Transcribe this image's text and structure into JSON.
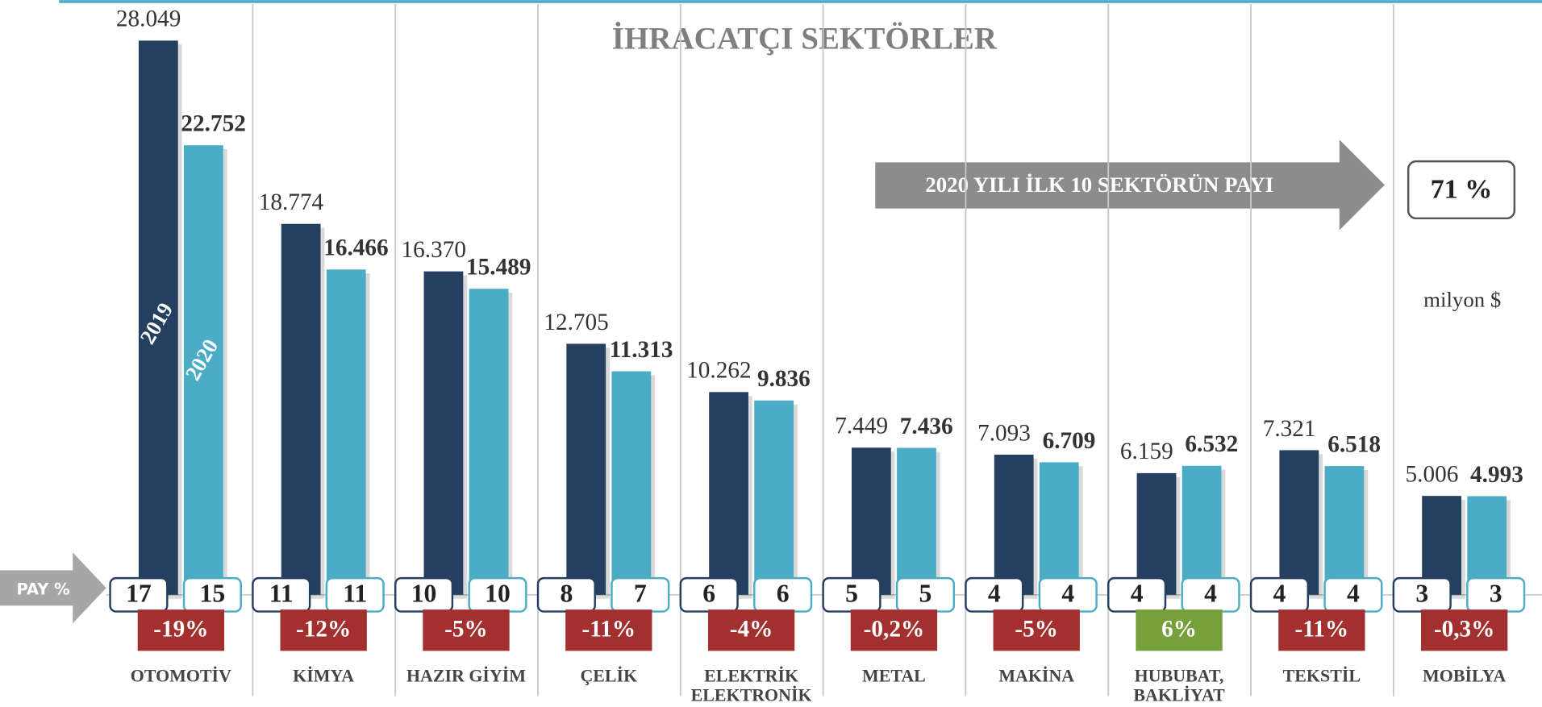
{
  "chart_data": {
    "type": "bar",
    "title": "İHRACATÇI SEKTÖRLER",
    "unit_label": "milyon $",
    "banner": {
      "text": "2020 YILI İLK 10 SEKTÖRÜN PAYI",
      "value": "71 %"
    },
    "share_label": "PAY %",
    "categories": [
      "OTOMOTİV",
      "KİMYA",
      "HAZIR GİYİM",
      "ÇELİK",
      "ELEKTRİK\nELEKTRONİK",
      "METAL",
      "MAKİNA",
      "HUBUBAT,\nBAKLİYAT",
      "TEKSTİL",
      "MOBİLYA"
    ],
    "series": [
      {
        "name": "2019",
        "color": "#243f60",
        "values": [
          28049,
          18774,
          16370,
          12705,
          10262,
          7449,
          7093,
          6159,
          7321,
          5006
        ],
        "value_labels": [
          "28.049",
          "18.774",
          "16.370",
          "12.705",
          "10.262",
          "7.449",
          "7.093",
          "6.159",
          "7.321",
          "5.006"
        ],
        "shares": [
          17,
          11,
          10,
          8,
          6,
          5,
          4,
          4,
          4,
          3
        ]
      },
      {
        "name": "2020",
        "color": "#4bacc6",
        "values": [
          22752,
          16466,
          15489,
          11313,
          9836,
          7436,
          6709,
          6532,
          6518,
          4993
        ],
        "value_labels": [
          "22.752",
          "16.466",
          "15.489",
          "11.313",
          "9.836",
          "7.436",
          "6.709",
          "6.532",
          "6.518",
          "4.993"
        ],
        "shares": [
          15,
          11,
          10,
          7,
          6,
          5,
          4,
          4,
          4,
          3
        ]
      }
    ],
    "changes": {
      "values": [
        -19,
        -12,
        -5,
        -11,
        -4,
        -0.2,
        -5,
        6,
        -11,
        -0.3
      ],
      "value_labels": [
        "-19%",
        "-12%",
        "-5%",
        "-11%",
        "-4%",
        "-0,2%",
        "-5%",
        "6%",
        "-11%",
        "-0,3%"
      ],
      "colors": {
        "decrease": "#a1302f",
        "increase": "#76a03b"
      }
    },
    "ylim": [
      0,
      30000
    ]
  }
}
